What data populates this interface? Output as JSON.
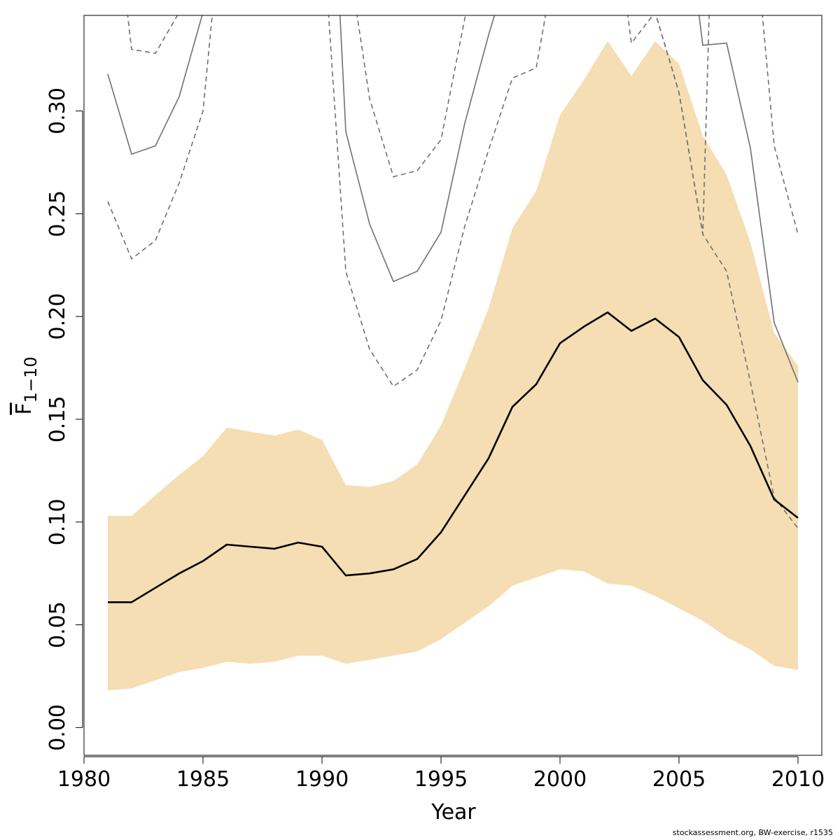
{
  "chart_data": {
    "type": "line",
    "xlabel": "Year",
    "ylabel": "F",
    "ylabel_subscript": "1−10",
    "xlim": [
      1980,
      2011
    ],
    "ylim": [
      -0.0135,
      0.3465
    ],
    "xticks": [
      1980,
      1985,
      1990,
      1995,
      2000,
      2005,
      2010
    ],
    "yticks": [
      0.0,
      0.05,
      0.1,
      0.15,
      0.2,
      0.25,
      0.3
    ],
    "grid": false,
    "legend": "none",
    "colors": {
      "band": "#f5deb3",
      "main": "#000000",
      "retro": "#707070"
    },
    "x": [
      1981,
      1982,
      1983,
      1984,
      1985,
      1986,
      1987,
      1988,
      1989,
      1990,
      1991,
      1992,
      1993,
      1994,
      1995,
      1996,
      1997,
      1998,
      1999,
      2000,
      2001,
      2002,
      2003,
      2004,
      2005,
      2006,
      2007,
      2008,
      2009,
      2010
    ],
    "series": [
      {
        "role": "estimate",
        "values": [
          0.061,
          0.061,
          0.068,
          0.075,
          0.081,
          0.089,
          0.088,
          0.087,
          0.09,
          0.088,
          0.074,
          0.075,
          0.077,
          0.082,
          0.095,
          0.113,
          0.131,
          0.156,
          0.167,
          0.187,
          0.195,
          0.202,
          0.193,
          0.199,
          0.19,
          0.169,
          0.157,
          0.137,
          0.111,
          0.102
        ]
      },
      {
        "role": "band-upper",
        "values": [
          0.103,
          0.103,
          0.113,
          0.123,
          0.132,
          0.146,
          0.144,
          0.142,
          0.145,
          0.14,
          0.118,
          0.117,
          0.12,
          0.128,
          0.147,
          0.175,
          0.204,
          0.243,
          0.261,
          0.298,
          0.315,
          0.334,
          0.317,
          0.334,
          0.323,
          0.288,
          0.269,
          0.236,
          0.192,
          0.176
        ]
      },
      {
        "role": "band-lower",
        "values": [
          0.018,
          0.019,
          0.023,
          0.027,
          0.029,
          0.032,
          0.031,
          0.032,
          0.035,
          0.035,
          0.031,
          0.033,
          0.035,
          0.037,
          0.043,
          0.051,
          0.059,
          0.069,
          0.073,
          0.077,
          0.076,
          0.07,
          0.069,
          0.064,
          0.058,
          0.052,
          0.044,
          0.038,
          0.03,
          0.028
        ]
      }
    ],
    "retro_peels": [
      {
        "mean": {
          "x": [
            1981,
            1982,
            1983,
            1984,
            1985,
            1985.3
          ],
          "values": [
            0.318,
            0.279,
            0.283,
            0.307,
            0.348,
            0.36
          ]
        },
        "upper": {
          "x": [
            1981.7,
            1982,
            1983,
            1984,
            1984.5
          ],
          "values": [
            0.36,
            0.33,
            0.328,
            0.348,
            0.36
          ]
        },
        "lower": {
          "x": [
            1981,
            1982,
            1983,
            1984,
            1985,
            1985.5
          ],
          "values": [
            0.256,
            0.228,
            0.237,
            0.265,
            0.3,
            0.36
          ]
        }
      },
      {
        "mean": {
          "x": [
            1990.7,
            1991,
            1992,
            1993,
            1994,
            1995,
            1996,
            1997,
            1997.6
          ],
          "values": [
            0.36,
            0.29,
            0.245,
            0.217,
            0.222,
            0.241,
            0.294,
            0.337,
            0.36
          ]
        },
        "upper": {
          "x": [
            1991.3,
            1992,
            1993,
            1994,
            1995,
            1996,
            1996.3
          ],
          "values": [
            0.36,
            0.306,
            0.268,
            0.271,
            0.286,
            0.345,
            0.36
          ]
        },
        "lower": {
          "x": [
            1990.2,
            1991,
            1992,
            1993,
            1994,
            1995,
            1996,
            1997,
            1998,
            1999,
            1999.6
          ],
          "values": [
            0.36,
            0.222,
            0.184,
            0.166,
            0.174,
            0.198,
            0.244,
            0.281,
            0.316,
            0.321,
            0.36
          ]
        }
      },
      {
        "mean": {
          "x": [
            2005.7,
            2006,
            2007,
            2008,
            2009,
            2010
          ],
          "values": [
            0.36,
            0.332,
            0.333,
            0.282,
            0.197,
            0.168
          ]
        },
        "upper": {
          "x": [
            2002.7,
            2003,
            2004,
            2005,
            2006,
            2006.3
          ],
          "values": [
            0.36,
            0.333,
            0.348,
            0.309,
            0.24,
            0.36
          ]
        },
        "lower": {
          "x": [
            2003.5,
            2004,
            2005,
            2006,
            2007,
            2008,
            2009,
            2010
          ],
          "values": [
            0.36,
            0.348,
            0.309,
            0.24,
            0.222,
            0.168,
            0.112,
            0.097
          ]
        },
        "upper_right": {
          "x": [
            2008.4,
            2009,
            2010
          ],
          "values": [
            0.36,
            0.283,
            0.24
          ]
        }
      }
    ]
  },
  "footnote": "stockassessment.org, BW-exercise, r1535"
}
